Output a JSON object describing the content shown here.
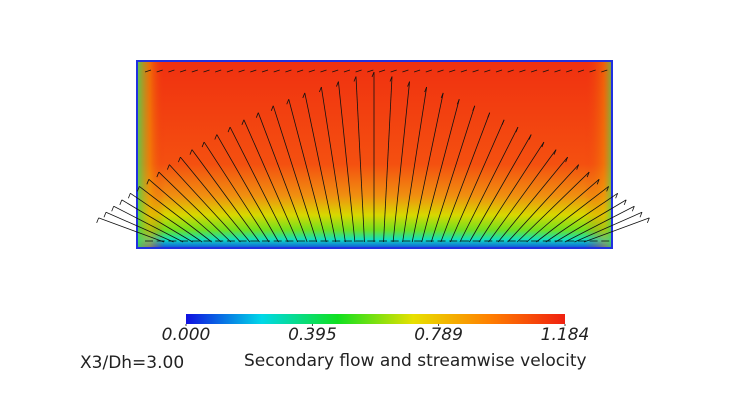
{
  "chart_data": {
    "type": "contour",
    "title": "Secondary flow and streamwise velocity",
    "annotation": "X3/Dh=3.00",
    "colormap": [
      "#1010e0",
      "#00d8e8",
      "#10e020",
      "#e8e000",
      "#ff8000",
      "#f02010"
    ],
    "clim": [
      0,
      1.184
    ],
    "cticks": [
      {
        "value": 0,
        "label": "0.000"
      },
      {
        "value": 0.395,
        "label": "0.395"
      },
      {
        "value": 0.789,
        "label": "0.789"
      },
      {
        "value": 1.184,
        "label": "1.184"
      }
    ]
  }
}
